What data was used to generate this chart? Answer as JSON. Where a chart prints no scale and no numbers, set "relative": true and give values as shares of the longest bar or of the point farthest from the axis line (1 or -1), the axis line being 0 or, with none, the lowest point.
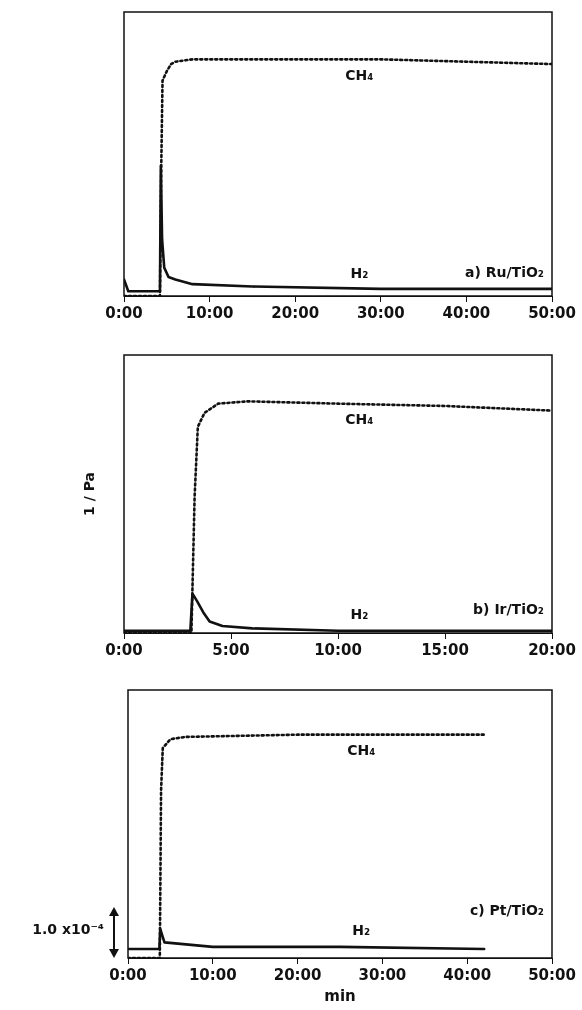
{
  "chart_data": [
    {
      "type": "line",
      "relative": true,
      "xlim": [
        0,
        50
      ],
      "xticks": [
        {
          "value": 0,
          "label": "0:00"
        },
        {
          "value": 10,
          "label": "10:00"
        },
        {
          "value": 20,
          "label": "20:00"
        },
        {
          "value": 30,
          "label": "30:00"
        },
        {
          "value": 40,
          "label": "40:00"
        },
        {
          "value": 50,
          "label": "50:00"
        }
      ],
      "tick_labels": "x",
      "marker": "none",
      "annotations": [
        "a) Ru/TiO₂"
      ],
      "series": [
        {
          "name": "CH₄",
          "color": "#111111",
          "line_style": "dotted",
          "x": [
            0,
            4.2,
            4.35,
            4.5,
            5,
            5.5,
            6,
            8,
            15,
            30,
            40,
            50
          ],
          "values": [
            0,
            0,
            0.54,
            0.91,
            0.95,
            0.98,
            0.99,
            1,
            1,
            1,
            0.99,
            0.98
          ]
        },
        {
          "name": "H₂",
          "color": "#111111",
          "line_style": "solid",
          "x": [
            0,
            0.5,
            4.2,
            4.3,
            4.45,
            4.7,
            5.2,
            6,
            8,
            15,
            30,
            50
          ],
          "values": [
            0.07,
            0.02,
            0.02,
            0.55,
            0.24,
            0.12,
            0.08,
            0.07,
            0.05,
            0.04,
            0.03,
            0.03
          ]
        }
      ]
    },
    {
      "type": "line",
      "relative": true,
      "ylabel": "1 / Pa",
      "xlim": [
        0,
        20
      ],
      "xticks": [
        {
          "value": 0,
          "label": "0:00"
        },
        {
          "value": 5,
          "label": "5:00"
        },
        {
          "value": 10,
          "label": "10:00"
        },
        {
          "value": 15,
          "label": "15:00"
        },
        {
          "value": 20,
          "label": "20:00"
        }
      ],
      "tick_labels": "x",
      "marker": "none",
      "annotations": [
        "b) Ir/TiO₂"
      ],
      "series": [
        {
          "name": "CH₄",
          "color": "#111111",
          "line_style": "dotted",
          "x": [
            0,
            3.15,
            3.3,
            3.45,
            3.76,
            4.4,
            5.8,
            10,
            15,
            20
          ],
          "values": [
            0,
            0,
            0.59,
            0.89,
            0.95,
            0.99,
            1,
            0.99,
            0.98,
            0.96
          ]
        },
        {
          "name": "H₂",
          "color": "#111111",
          "line_style": "solid",
          "x": [
            0,
            3.1,
            3.2,
            3.4,
            3.7,
            4,
            4.6,
            6,
            10,
            20
          ],
          "values": [
            0.01,
            0.01,
            0.17,
            0.14,
            0.09,
            0.05,
            0.03,
            0.02,
            0.01,
            0.01
          ]
        }
      ]
    },
    {
      "type": "line",
      "relative": true,
      "xlabel": "min",
      "xlim": [
        0,
        50
      ],
      "xticks": [
        {
          "value": 0,
          "label": "0:00"
        },
        {
          "value": 10,
          "label": "10:00"
        },
        {
          "value": 20,
          "label": "20:00"
        },
        {
          "value": 30,
          "label": "30:00"
        },
        {
          "value": 40,
          "label": "40:00"
        },
        {
          "value": 50,
          "label": "50:00"
        }
      ],
      "tick_labels": "x",
      "marker": "none",
      "annotations": [
        "c) Pt/TiO₂",
        "1.0 x10⁻⁴"
      ],
      "series": [
        {
          "name": "CH₄",
          "color": "#111111",
          "line_style": "dotted",
          "x": [
            0,
            3.75,
            3.9,
            4.1,
            5,
            6.8,
            20,
            42
          ],
          "values": [
            0,
            0,
            0.75,
            0.94,
            0.98,
            0.99,
            1,
            1
          ]
        },
        {
          "name": "H₂",
          "color": "#111111",
          "line_style": "solid",
          "x": [
            0,
            3.7,
            3.8,
            4.3,
            10,
            25,
            42
          ],
          "values": [
            0.04,
            0.04,
            0.13,
            0.07,
            0.05,
            0.05,
            0.04
          ]
        }
      ]
    }
  ]
}
